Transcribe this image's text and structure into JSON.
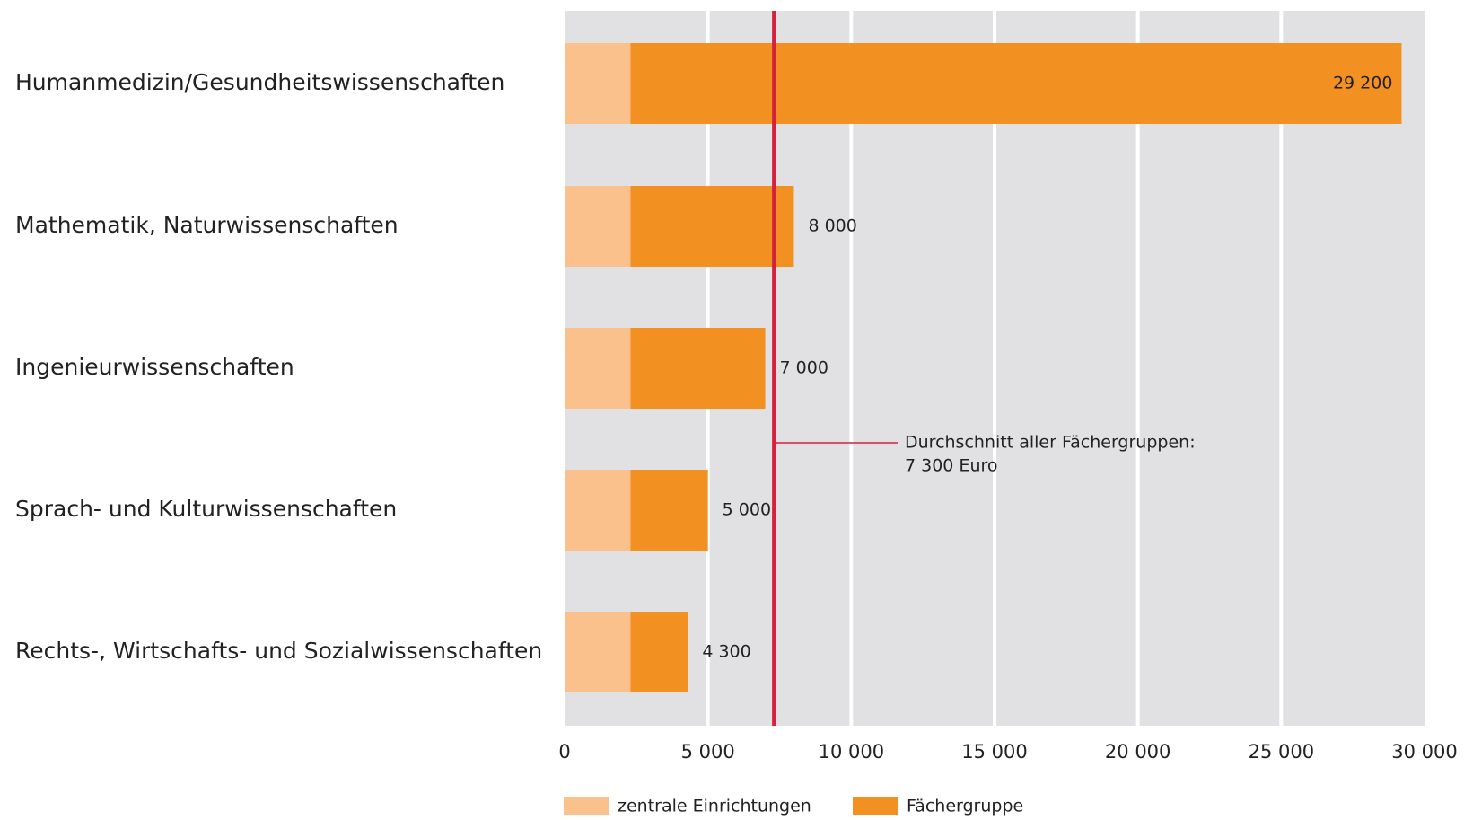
{
  "chart_data": {
    "type": "stacked-bar-horizontal",
    "categories": [
      "Humanmedizin/Gesundheitswissenschaften",
      "Mathematik, Naturwissenschaften",
      "Ingenieurwissenschaften",
      "Sprach- und Kulturwissenschaften",
      "Rechts-, Wirtschafts- und Sozialwissenschaften"
    ],
    "series": [
      {
        "name": "zentrale Einrichtungen",
        "color": "#fac18d",
        "values": [
          2300,
          2300,
          2300,
          2300,
          2300
        ]
      },
      {
        "name": "Fächergruppe",
        "color": "#f39022",
        "values": [
          26900,
          5700,
          4700,
          2700,
          2000
        ]
      }
    ],
    "totals": [
      29200,
      8000,
      7000,
      5000,
      4300
    ],
    "total_labels": [
      "29 200",
      "8 000",
      "7 000",
      "5 000",
      "4 300"
    ],
    "xlim": [
      0,
      30000
    ],
    "xticks": [
      0,
      {
        "value": 5000,
        "label": "5 000"
      },
      {
        "value": 10000,
        "label": "10 000"
      },
      {
        "value": 15000,
        "label": "15 000"
      },
      {
        "value": 20000,
        "label": "20 000"
      },
      {
        "value": 25000,
        "label": "25 000"
      },
      {
        "value": 30000,
        "label": "30 000"
      }
    ],
    "grid": true,
    "reference_line": {
      "value": 7300,
      "color": "#d4213d",
      "label": [
        "Durchschnitt aller Fächergruppen:",
        "7 300 Euro"
      ]
    },
    "legend": "bottom-left"
  }
}
